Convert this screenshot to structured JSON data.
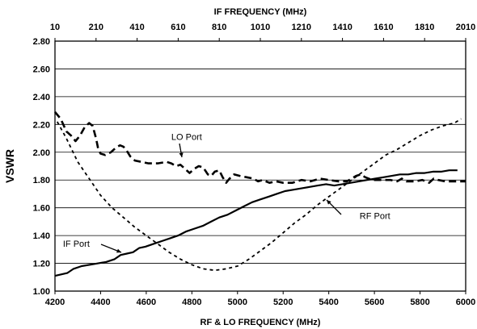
{
  "chart_data": {
    "type": "line",
    "xlabel": "RF & LO FREQUENCY (MHz)",
    "x2label": "IF FREQUENCY (MHz)",
    "ylabel": "VSWR",
    "xlim": [
      4200,
      6000
    ],
    "x2lim": [
      10,
      2010
    ],
    "ylim": [
      1.0,
      2.8
    ],
    "grid": true,
    "x_ticks": [
      "4200",
      "4400",
      "4600",
      "4800",
      "5000",
      "5200",
      "5400",
      "5600",
      "5800",
      "6000"
    ],
    "x2_ticks": [
      "10",
      "210",
      "410",
      "610",
      "810",
      "1010",
      "1210",
      "1410",
      "1610",
      "1810",
      "2010"
    ],
    "y_ticks": [
      "1.00",
      "1.20",
      "1.40",
      "1.60",
      "1.80",
      "2.00",
      "2.20",
      "2.40",
      "2.60",
      "2.80"
    ],
    "series": [
      {
        "name": "LO Port",
        "style": "dashed",
        "x_axis": "bottom",
        "points": [
          [
            4200,
            2.29
          ],
          [
            4225,
            2.24
          ],
          [
            4250,
            2.15
          ],
          [
            4270,
            2.12
          ],
          [
            4290,
            2.08
          ],
          [
            4310,
            2.12
          ],
          [
            4330,
            2.18
          ],
          [
            4350,
            2.21
          ],
          [
            4365,
            2.19
          ],
          [
            4380,
            2.1
          ],
          [
            4390,
            2.02
          ],
          [
            4400,
            1.99
          ],
          [
            4420,
            1.98
          ],
          [
            4445,
            2.0
          ],
          [
            4465,
            2.03
          ],
          [
            4485,
            2.05
          ],
          [
            4500,
            2.04
          ],
          [
            4515,
            2.01
          ],
          [
            4530,
            1.97
          ],
          [
            4550,
            1.94
          ],
          [
            4580,
            1.93
          ],
          [
            4610,
            1.92
          ],
          [
            4650,
            1.92
          ],
          [
            4690,
            1.93
          ],
          [
            4710,
            1.92
          ],
          [
            4730,
            1.9
          ],
          [
            4750,
            1.91
          ],
          [
            4770,
            1.88
          ],
          [
            4790,
            1.85
          ],
          [
            4810,
            1.88
          ],
          [
            4830,
            1.9
          ],
          [
            4850,
            1.89
          ],
          [
            4870,
            1.84
          ],
          [
            4885,
            1.83
          ],
          [
            4900,
            1.86
          ],
          [
            4920,
            1.87
          ],
          [
            4935,
            1.82
          ],
          [
            4950,
            1.78
          ],
          [
            4965,
            1.81
          ],
          [
            4985,
            1.84
          ],
          [
            5010,
            1.83
          ],
          [
            5040,
            1.82
          ],
          [
            5070,
            1.81
          ],
          [
            5090,
            1.79
          ],
          [
            5110,
            1.8
          ],
          [
            5140,
            1.78
          ],
          [
            5170,
            1.79
          ],
          [
            5200,
            1.78
          ],
          [
            5240,
            1.78
          ],
          [
            5280,
            1.8
          ],
          [
            5320,
            1.79
          ],
          [
            5360,
            1.81
          ],
          [
            5400,
            1.8
          ],
          [
            5440,
            1.79
          ],
          [
            5480,
            1.79
          ],
          [
            5520,
            1.83
          ],
          [
            5540,
            1.84
          ],
          [
            5560,
            1.82
          ],
          [
            5590,
            1.8
          ],
          [
            5630,
            1.8
          ],
          [
            5670,
            1.8
          ],
          [
            5700,
            1.79
          ],
          [
            5720,
            1.81
          ],
          [
            5740,
            1.79
          ],
          [
            5780,
            1.79
          ],
          [
            5810,
            1.8
          ],
          [
            5840,
            1.78
          ],
          [
            5860,
            1.81
          ],
          [
            5880,
            1.8
          ],
          [
            5910,
            1.79
          ],
          [
            5950,
            1.79
          ],
          [
            6000,
            1.79
          ]
        ]
      },
      {
        "name": "RF Port",
        "style": "dotted",
        "x_axis": "bottom",
        "points": [
          [
            4210,
            2.22
          ],
          [
            4250,
            2.1
          ],
          [
            4300,
            1.93
          ],
          [
            4350,
            1.81
          ],
          [
            4400,
            1.69
          ],
          [
            4450,
            1.6
          ],
          [
            4500,
            1.53
          ],
          [
            4550,
            1.46
          ],
          [
            4600,
            1.4
          ],
          [
            4650,
            1.34
          ],
          [
            4700,
            1.28
          ],
          [
            4750,
            1.23
          ],
          [
            4800,
            1.19
          ],
          [
            4850,
            1.16
          ],
          [
            4900,
            1.15
          ],
          [
            4950,
            1.16
          ],
          [
            5000,
            1.18
          ],
          [
            5050,
            1.23
          ],
          [
            5100,
            1.29
          ],
          [
            5150,
            1.35
          ],
          [
            5200,
            1.42
          ],
          [
            5250,
            1.49
          ],
          [
            5300,
            1.55
          ],
          [
            5350,
            1.62
          ],
          [
            5400,
            1.68
          ],
          [
            5450,
            1.74
          ],
          [
            5500,
            1.8
          ],
          [
            5550,
            1.86
          ],
          [
            5600,
            1.92
          ],
          [
            5650,
            1.98
          ],
          [
            5700,
            2.02
          ],
          [
            5750,
            2.07
          ],
          [
            5800,
            2.12
          ],
          [
            5850,
            2.16
          ],
          [
            5900,
            2.19
          ],
          [
            5950,
            2.21
          ],
          [
            5980,
            2.24
          ]
        ]
      },
      {
        "name": "IF Port",
        "style": "solid",
        "x_axis": "top",
        "points": [
          [
            10,
            1.11
          ],
          [
            40,
            1.12
          ],
          [
            70,
            1.13
          ],
          [
            100,
            1.16
          ],
          [
            140,
            1.18
          ],
          [
            180,
            1.19
          ],
          [
            220,
            1.2
          ],
          [
            260,
            1.21
          ],
          [
            300,
            1.23
          ],
          [
            330,
            1.26
          ],
          [
            360,
            1.27
          ],
          [
            390,
            1.28
          ],
          [
            420,
            1.31
          ],
          [
            450,
            1.32
          ],
          [
            490,
            1.34
          ],
          [
            530,
            1.36
          ],
          [
            570,
            1.38
          ],
          [
            610,
            1.4
          ],
          [
            650,
            1.43
          ],
          [
            690,
            1.45
          ],
          [
            730,
            1.47
          ],
          [
            770,
            1.5
          ],
          [
            810,
            1.53
          ],
          [
            850,
            1.55
          ],
          [
            890,
            1.58
          ],
          [
            930,
            1.61
          ],
          [
            970,
            1.64
          ],
          [
            1010,
            1.66
          ],
          [
            1050,
            1.68
          ],
          [
            1090,
            1.7
          ],
          [
            1130,
            1.72
          ],
          [
            1170,
            1.73
          ],
          [
            1210,
            1.74
          ],
          [
            1250,
            1.75
          ],
          [
            1290,
            1.76
          ],
          [
            1330,
            1.77
          ],
          [
            1370,
            1.76
          ],
          [
            1410,
            1.77
          ],
          [
            1450,
            1.78
          ],
          [
            1490,
            1.79
          ],
          [
            1530,
            1.8
          ],
          [
            1570,
            1.81
          ],
          [
            1610,
            1.82
          ],
          [
            1650,
            1.83
          ],
          [
            1690,
            1.84
          ],
          [
            1730,
            1.84
          ],
          [
            1770,
            1.85
          ],
          [
            1810,
            1.85
          ],
          [
            1850,
            1.86
          ],
          [
            1890,
            1.86
          ],
          [
            1930,
            1.87
          ],
          [
            1970,
            1.87
          ]
        ]
      }
    ],
    "annotations": [
      {
        "text": "LO Port",
        "x": 4710,
        "y": 2.09
      },
      {
        "text": "RF Port",
        "x": 5535,
        "y": 1.52
      },
      {
        "text": "IF Port",
        "x": 4235,
        "y": 1.32
      }
    ]
  }
}
